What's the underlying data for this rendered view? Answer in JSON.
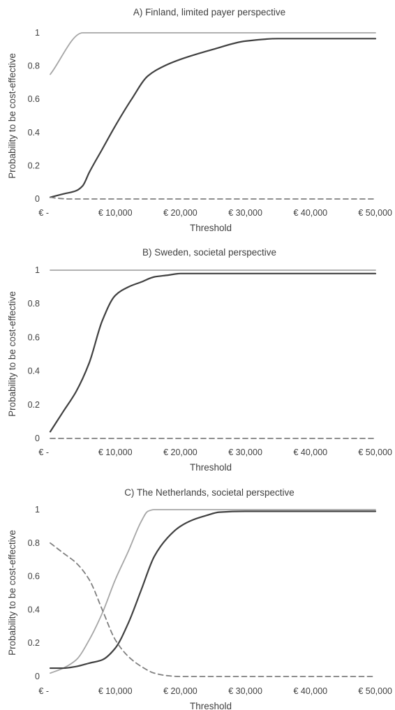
{
  "chart_data": [
    {
      "type": "line",
      "title": "A) Finland, limited payer perspective",
      "xlabel": "Threshold",
      "ylabel": "Probability to be cost-effective",
      "xlim": [
        0,
        50000
      ],
      "ylim": [
        0,
        1
      ],
      "x_tick_labels": [
        "€ -",
        "€ 10,000",
        "€ 20,000",
        "€ 30,000",
        "€ 40,000",
        "€ 50,000"
      ],
      "y_tick_labels": [
        "0",
        "0.2",
        "0.4",
        "0.6",
        "0.8",
        "1"
      ],
      "grid": false,
      "series": [
        {
          "style": "solid",
          "color": "#a6a6a6",
          "x": [
            0,
            5000,
            6000,
            10000,
            20000,
            30000,
            40000,
            50000
          ],
          "y": [
            0.75,
            1.0,
            1.0,
            1.0,
            1.0,
            1.0,
            1.0,
            1.0
          ]
        },
        {
          "style": "solid",
          "color": "#404040",
          "x": [
            0,
            2000,
            4000,
            5000,
            6000,
            8000,
            10000,
            12500,
            15000,
            17500,
            20000,
            25000,
            30000,
            35000,
            40000,
            45000,
            50000
          ],
          "y": [
            0.01,
            0.03,
            0.05,
            0.08,
            0.16,
            0.3,
            0.44,
            0.6,
            0.74,
            0.8,
            0.84,
            0.9,
            0.95,
            0.965,
            0.965,
            0.965,
            0.965
          ]
        },
        {
          "style": "dashed",
          "color": "#7f7f7f",
          "x": [
            0,
            1000,
            3000,
            10000,
            20000,
            30000,
            40000,
            50000
          ],
          "y": [
            0.01,
            0.005,
            0.0,
            0.0,
            0.0,
            0.0,
            0.0,
            0.0
          ]
        }
      ]
    },
    {
      "type": "line",
      "title": "B) Sweden, societal perspective",
      "xlabel": "Threshold",
      "ylabel": "Probability to be cost-effective",
      "xlim": [
        0,
        50000
      ],
      "ylim": [
        0,
        1
      ],
      "x_tick_labels": [
        "€ -",
        "€ 10,000",
        "€ 20,000",
        "€ 30,000",
        "€ 40,000",
        "€ 50,000"
      ],
      "y_tick_labels": [
        "0",
        "0.2",
        "0.4",
        "0.6",
        "0.8",
        "1"
      ],
      "grid": false,
      "series": [
        {
          "style": "solid",
          "color": "#a6a6a6",
          "x": [
            0,
            10000,
            20000,
            30000,
            40000,
            50000
          ],
          "y": [
            1.0,
            1.0,
            1.0,
            1.0,
            1.0,
            1.0
          ]
        },
        {
          "style": "solid",
          "color": "#404040",
          "x": [
            0,
            2000,
            4000,
            6000,
            8000,
            10000,
            12000,
            14000,
            16000,
            18000,
            20000,
            25000,
            30000,
            40000,
            50000
          ],
          "y": [
            0.04,
            0.16,
            0.28,
            0.45,
            0.7,
            0.85,
            0.9,
            0.93,
            0.96,
            0.97,
            0.98,
            0.98,
            0.98,
            0.98,
            0.98
          ]
        },
        {
          "style": "dashed",
          "color": "#7f7f7f",
          "x": [
            0,
            10000,
            20000,
            30000,
            40000,
            50000
          ],
          "y": [
            0.0,
            0.0,
            0.0,
            0.0,
            0.0,
            0.0
          ]
        }
      ]
    },
    {
      "type": "line",
      "title": "C) The Netherlands, societal perspective",
      "xlabel": "Threshold",
      "ylabel": "Probability to be cost-effective",
      "xlim": [
        0,
        50000
      ],
      "ylim": [
        0,
        1
      ],
      "x_tick_labels": [
        "€ -",
        "€ 10,000",
        "€ 20,000",
        "€ 30,000",
        "€ 40,000",
        "€ 50,000"
      ],
      "y_tick_labels": [
        "0",
        "0.2",
        "0.4",
        "0.6",
        "0.8",
        "1"
      ],
      "grid": false,
      "series": [
        {
          "style": "solid",
          "color": "#a6a6a6",
          "x": [
            0,
            2000,
            4000,
            6000,
            8000,
            10000,
            12000,
            14000,
            15000,
            16000,
            20000,
            30000,
            40000,
            50000
          ],
          "y": [
            0.02,
            0.05,
            0.1,
            0.22,
            0.38,
            0.58,
            0.75,
            0.93,
            0.99,
            1.0,
            1.0,
            1.0,
            1.0,
            1.0
          ]
        },
        {
          "style": "solid",
          "color": "#404040",
          "x": [
            0,
            2000,
            4000,
            6000,
            8000,
            10000,
            12000,
            14000,
            16000,
            18000,
            20000,
            22000,
            24000,
            26000,
            30000,
            40000,
            50000
          ],
          "y": [
            0.05,
            0.05,
            0.06,
            0.08,
            0.1,
            0.17,
            0.32,
            0.52,
            0.72,
            0.83,
            0.9,
            0.94,
            0.965,
            0.985,
            0.99,
            0.99,
            0.99
          ]
        },
        {
          "style": "dashed",
          "color": "#7f7f7f",
          "x": [
            0,
            2000,
            4000,
            6000,
            8000,
            10000,
            12000,
            14000,
            16000,
            18000,
            20000,
            25000,
            30000,
            40000,
            50000
          ],
          "y": [
            0.8,
            0.74,
            0.68,
            0.58,
            0.4,
            0.22,
            0.12,
            0.06,
            0.02,
            0.005,
            0.0,
            0.0,
            0.0,
            0.0,
            0.0
          ]
        }
      ]
    }
  ]
}
